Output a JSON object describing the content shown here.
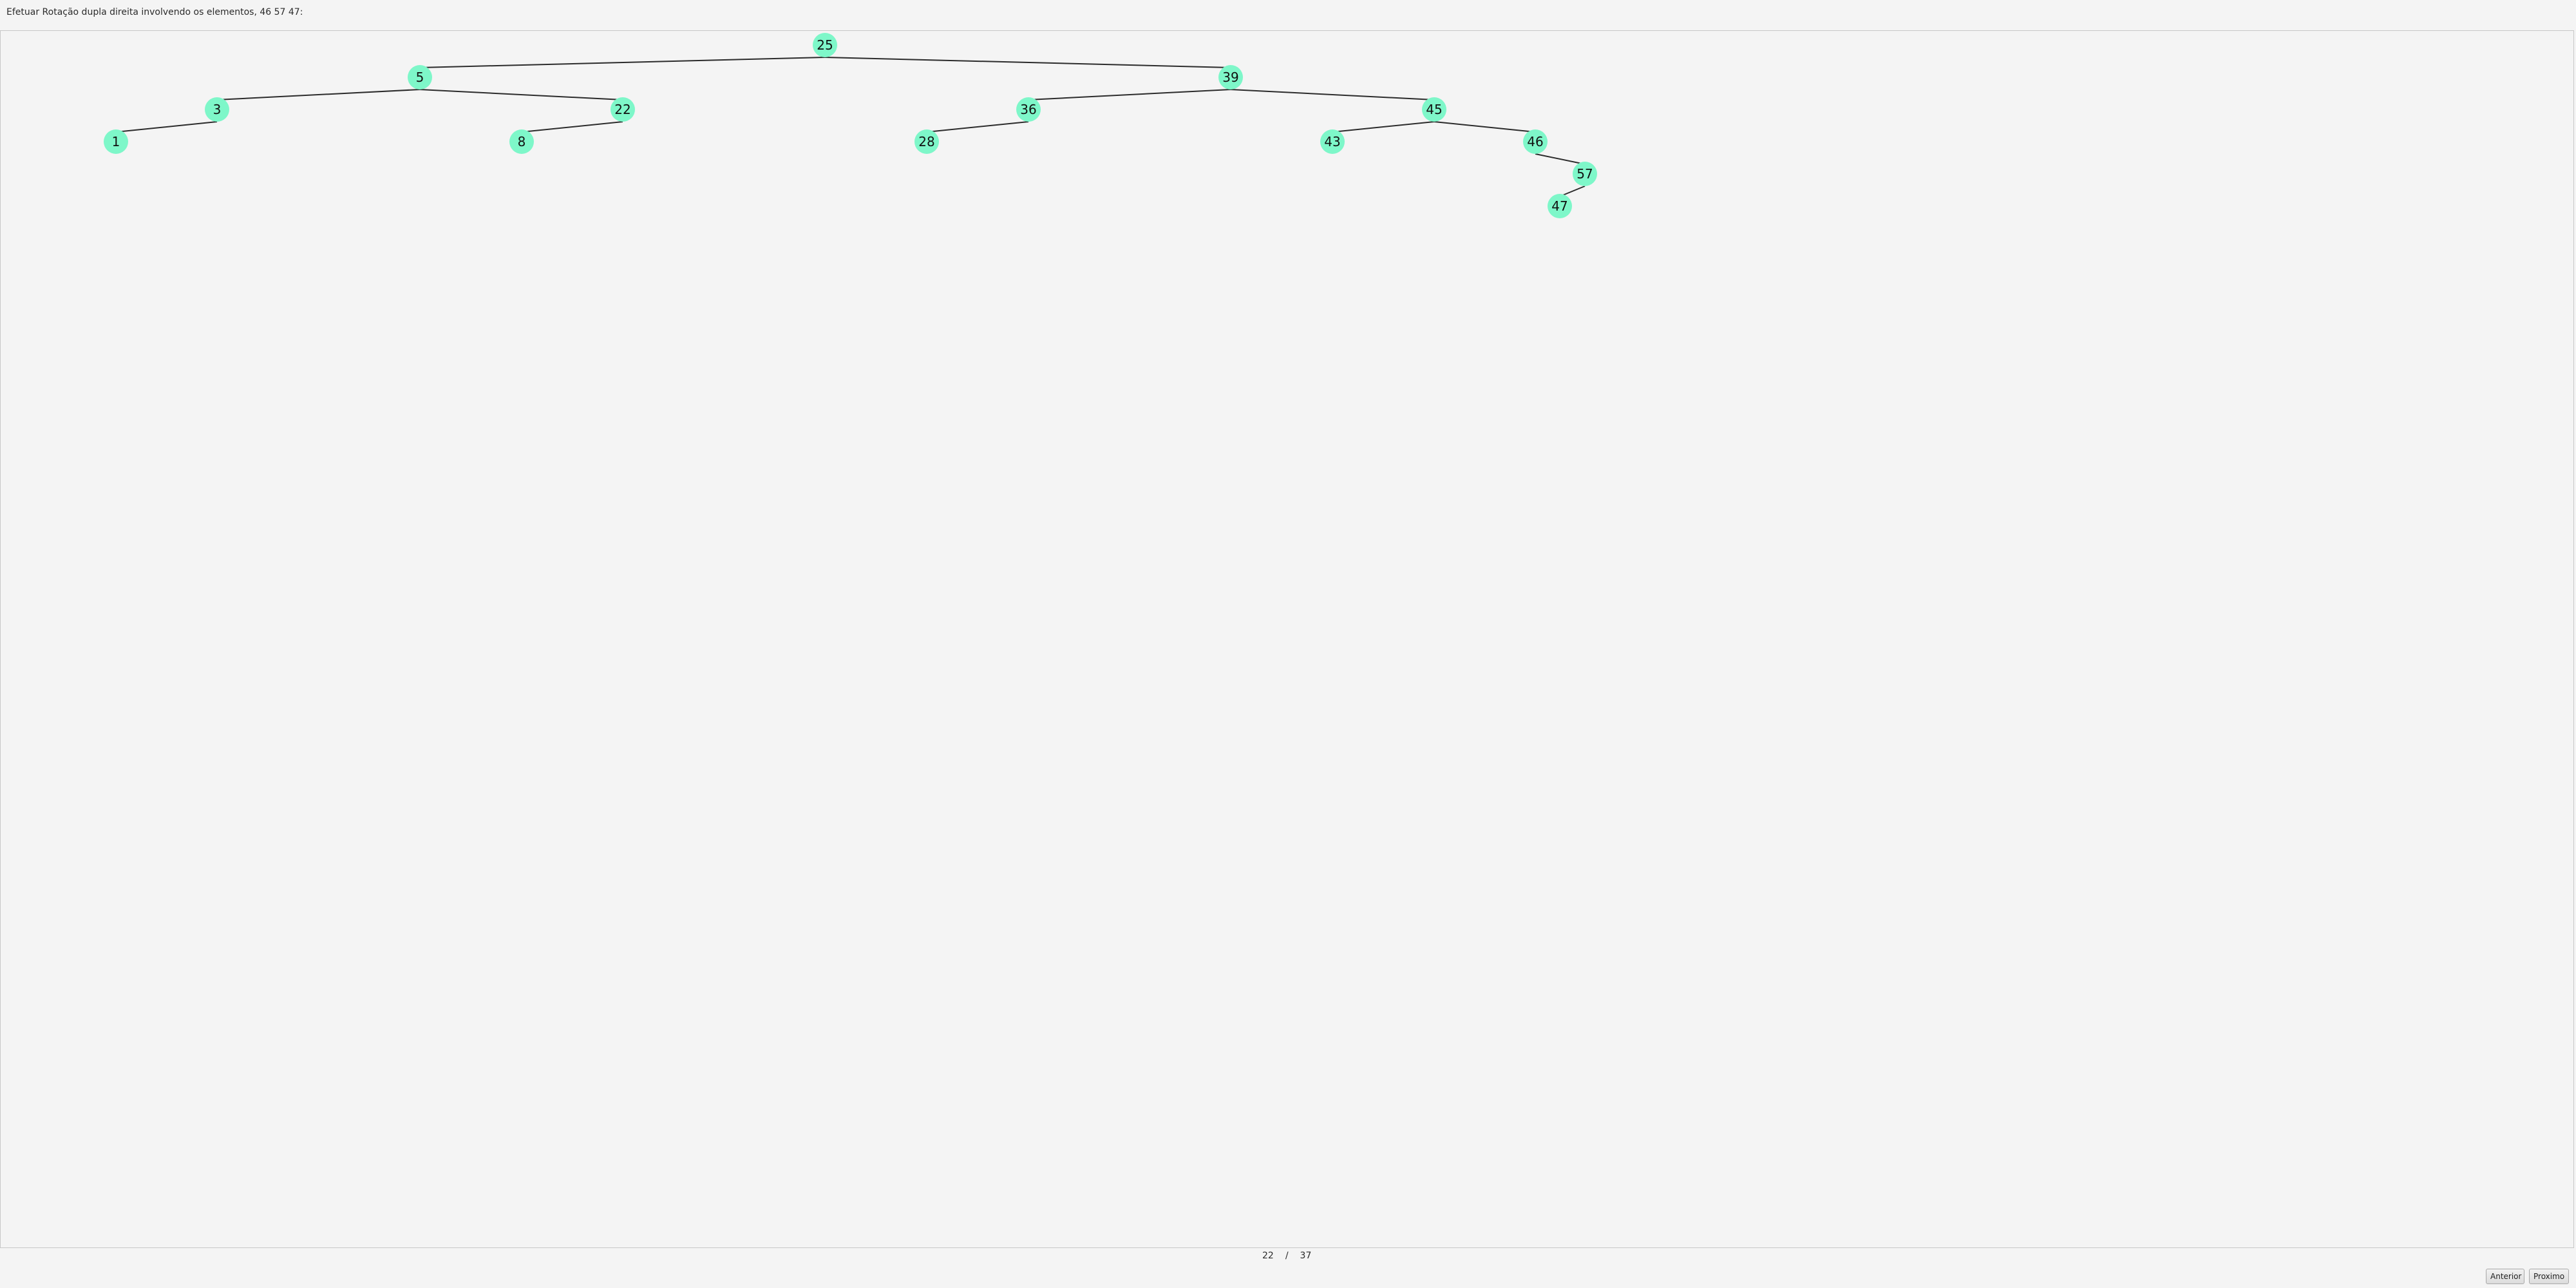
{
  "instruction": "Efetuar Rotação dupla direita involvendo os elementos, 46 57 47:",
  "tree": {
    "nodes": [
      "25",
      "5",
      "39",
      "3",
      "22",
      "36",
      "45",
      "1",
      "8",
      "28",
      "43",
      "46",
      "57",
      "47"
    ],
    "edges": [
      [
        "25",
        "5"
      ],
      [
        "25",
        "39"
      ],
      [
        "5",
        "3"
      ],
      [
        "5",
        "22"
      ],
      [
        "3",
        "1"
      ],
      [
        "22",
        "8"
      ],
      [
        "39",
        "36"
      ],
      [
        "39",
        "45"
      ],
      [
        "36",
        "28"
      ],
      [
        "45",
        "43"
      ],
      [
        "45",
        "46"
      ],
      [
        "46",
        "57"
      ],
      [
        "57",
        "47"
      ]
    ],
    "node_color": "#7ef7c9",
    "edge_color": "#2b2b2b"
  },
  "pager": {
    "current": "22",
    "separator": "/",
    "total": "37"
  },
  "buttons": {
    "previous": "Anterior",
    "next": "Proximo"
  }
}
